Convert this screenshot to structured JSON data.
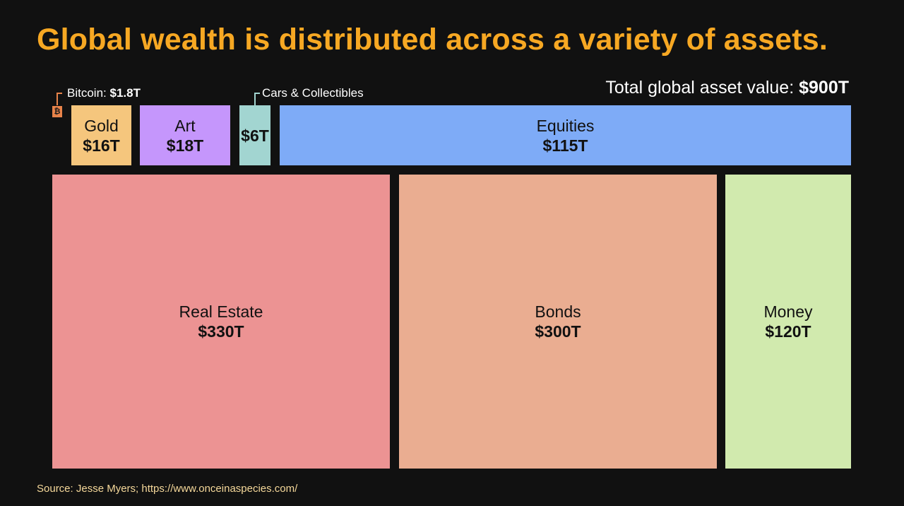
{
  "title": "Global wealth is distributed across a variety of assets.",
  "total": {
    "label": "Total global asset value:",
    "value": "$900T"
  },
  "source": "Source: Jesse Myers; https://www.onceinaspecies.com/",
  "chart_data": {
    "type": "treemap",
    "title": "Global wealth is distributed across a variety of assets.",
    "total_trillions": 900,
    "unit": "USD trillions",
    "items": [
      {
        "name": "Real Estate",
        "value": 330,
        "label": "$330T",
        "color": "#EC9393"
      },
      {
        "name": "Bonds",
        "value": 300,
        "label": "$300T",
        "color": "#EAAD91"
      },
      {
        "name": "Money",
        "value": 120,
        "label": "$120T",
        "color": "#D1EAAE"
      },
      {
        "name": "Equities",
        "value": 115,
        "label": "$115T",
        "color": "#7EABF7"
      },
      {
        "name": "Art",
        "value": 18,
        "label": "$18T",
        "color": "#C596FC"
      },
      {
        "name": "Gold",
        "value": 16,
        "label": "$16T",
        "color": "#F5C67D"
      },
      {
        "name": "Cars & Collectibles",
        "value": 6,
        "label": "$6T",
        "color": "#A2D5D1"
      },
      {
        "name": "Bitcoin",
        "value": 1.8,
        "label": "$1.8T",
        "color": "#E8834A"
      }
    ],
    "callouts": {
      "bitcoin": {
        "prefix": "Bitcoin:",
        "value": "$1.8T",
        "icon": "bitcoin-icon",
        "icon_glyph": "₿"
      },
      "cars": {
        "label": "Cars & Collectibles"
      }
    }
  }
}
